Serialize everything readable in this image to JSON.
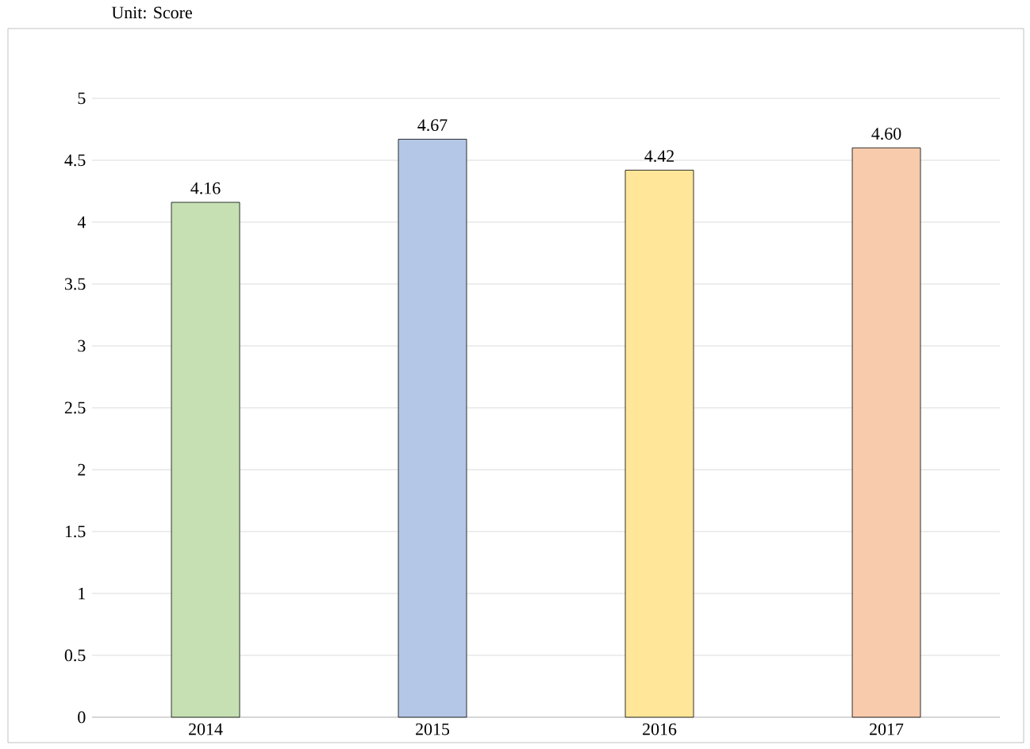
{
  "chart_data": {
    "type": "bar",
    "ylabel": "Unit: Score",
    "categories": [
      "2014",
      "2015",
      "2016",
      "2017"
    ],
    "values": [
      4.16,
      4.67,
      4.42,
      4.6
    ],
    "value_labels": [
      "4.16",
      "4.67",
      "4.42",
      "4.60"
    ],
    "colors": [
      "#c6e0b4",
      "#b4c7e7",
      "#ffe699",
      "#f8cbad"
    ],
    "ylim": [
      0,
      5
    ],
    "yticks": [
      0,
      0.5,
      1,
      1.5,
      2,
      2.5,
      3,
      3.5,
      4,
      4.5,
      5
    ],
    "grid": "y"
  }
}
